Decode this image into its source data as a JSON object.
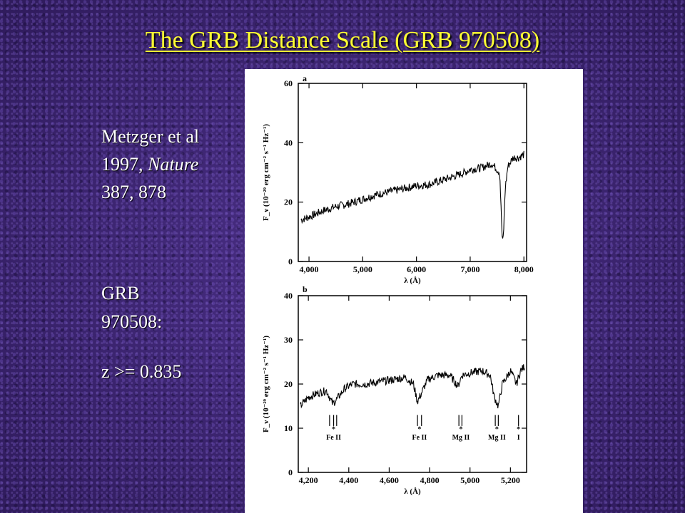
{
  "slide": {
    "title": "The GRB Distance Scale (GRB 970508)",
    "citation_authors": "Metzger et al",
    "citation_year": "1997,",
    "citation_journal": "Nature",
    "citation_pages": "387, 878",
    "grb_label": "GRB",
    "grb_id": "970508:",
    "redshift": "z >= 0.835",
    "colors": {
      "title": "#ffff33",
      "text": "#ffffff",
      "background": "#3a2470"
    }
  },
  "chart_data": [
    {
      "type": "line",
      "panel": "a",
      "xlabel": "λ (Å)",
      "ylabel": "F_ν (10⁻²⁹ erg cm⁻² s⁻¹ Hz⁻¹)",
      "xlim": [
        3800,
        8050
      ],
      "ylim": [
        0,
        60
      ],
      "xticks": [
        4000,
        5000,
        6000,
        7000,
        8000
      ],
      "xtick_labels": [
        "4,000",
        "5,000",
        "6,000",
        "7,000",
        "8,000"
      ],
      "yticks": [
        0,
        20,
        40,
        60
      ],
      "ytick_labels": [
        "0",
        "20",
        "40",
        "60"
      ],
      "x": [
        3850,
        4000,
        4250,
        4500,
        4750,
        5000,
        5250,
        5500,
        5750,
        6000,
        6250,
        6500,
        6750,
        6900,
        7000,
        7200,
        7400,
        7550,
        7600,
        7620,
        7650,
        7700,
        7800,
        7900,
        8000
      ],
      "y": [
        14,
        15,
        17,
        18.5,
        19.5,
        21,
        22.5,
        23.5,
        24.5,
        25.5,
        26,
        27.5,
        29,
        30,
        31,
        31.5,
        33,
        30,
        6,
        9,
        24,
        32,
        35,
        35,
        36
      ]
    },
    {
      "type": "line",
      "panel": "b",
      "xlabel": "λ (Å)",
      "ylabel": "F_ν (10⁻²⁹ erg cm⁻² s⁻¹ Hz⁻¹)",
      "xlim": [
        4150,
        5280
      ],
      "ylim": [
        0,
        40
      ],
      "xticks": [
        4200,
        4400,
        4600,
        4800,
        5000,
        5200
      ],
      "xtick_labels": [
        "4,200",
        "4,400",
        "4,600",
        "4,800",
        "5,000",
        "5,200"
      ],
      "yticks": [
        0,
        10,
        20,
        30,
        40
      ],
      "ytick_labels": [
        "0",
        "10",
        "20",
        "30",
        "40"
      ],
      "x": [
        4160,
        4200,
        4250,
        4290,
        4320,
        4340,
        4380,
        4420,
        4480,
        4550,
        4620,
        4680,
        4720,
        4740,
        4760,
        4790,
        4840,
        4900,
        4940,
        4960,
        5000,
        5060,
        5100,
        5120,
        5140,
        5160,
        5200,
        5230,
        5250,
        5270
      ],
      "y": [
        15,
        17,
        18,
        18.5,
        15.5,
        16.5,
        19,
        20,
        20,
        20.5,
        21,
        21.5,
        20,
        16,
        18,
        21,
        22,
        22,
        19.5,
        22,
        22.5,
        23,
        22,
        17,
        15,
        20,
        23,
        20,
        23,
        24
      ],
      "annotations": [
        "Fe II",
        "Fe II",
        "Mg II",
        "Mg II",
        "I"
      ]
    }
  ]
}
